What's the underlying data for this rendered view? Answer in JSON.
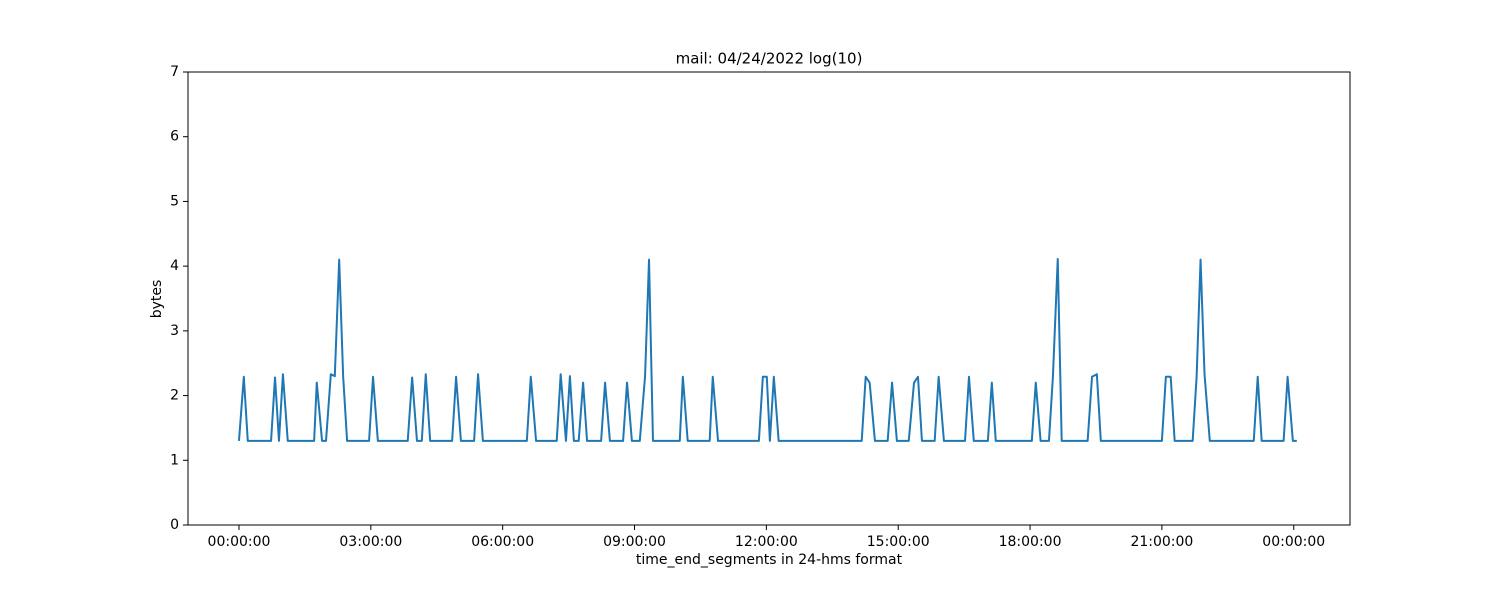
{
  "chart_data": {
    "type": "line",
    "title": "mail: 04/24/2022 log(10)",
    "xlabel": "time_end_segments in 24-hms format",
    "ylabel": "bytes",
    "x": [
      0,
      0.11,
      0.2,
      0.73,
      0.82,
      0.91,
      1.0,
      1.11,
      1.71,
      1.77,
      1.89,
      1.98,
      2.09,
      2.18,
      2.28,
      2.37,
      2.46,
      2.96,
      3.05,
      3.16,
      3.84,
      3.94,
      4.05,
      4.16,
      4.25,
      4.35,
      4.85,
      4.94,
      5.05,
      5.35,
      5.44,
      5.55,
      6.55,
      6.64,
      6.76,
      7.23,
      7.32,
      7.44,
      7.53,
      7.62,
      7.73,
      7.83,
      7.92,
      8.24,
      8.33,
      8.44,
      8.74,
      8.83,
      8.94,
      9.12,
      9.24,
      9.33,
      9.42,
      10.03,
      10.1,
      10.21,
      10.71,
      10.78,
      10.9,
      11.83,
      11.92,
      12.01,
      12.08,
      12.17,
      12.28,
      14.17,
      14.26,
      14.35,
      14.47,
      14.76,
      14.86,
      14.97,
      15.24,
      15.36,
      15.45,
      15.54,
      15.83,
      15.92,
      16.04,
      16.52,
      16.61,
      16.72,
      17.04,
      17.13,
      17.22,
      18.04,
      18.13,
      18.24,
      18.43,
      18.52,
      18.63,
      18.72,
      19.31,
      19.41,
      19.52,
      19.61,
      21.0,
      21.09,
      21.2,
      21.29,
      21.7,
      21.79,
      21.88,
      21.97,
      22.09,
      23.09,
      23.18,
      23.27,
      23.77,
      23.86,
      23.98,
      24.07
    ],
    "series": [
      {
        "name": "mail",
        "color": "#1f77b4",
        "values": [
          1.3,
          2.29,
          1.3,
          1.3,
          2.28,
          1.3,
          2.33,
          1.3,
          1.3,
          2.2,
          1.3,
          1.3,
          2.33,
          2.3,
          4.1,
          2.3,
          1.3,
          1.3,
          2.29,
          1.3,
          1.3,
          2.28,
          1.3,
          1.3,
          2.33,
          1.3,
          1.3,
          2.29,
          1.3,
          1.3,
          2.33,
          1.3,
          1.3,
          2.29,
          1.3,
          1.3,
          2.33,
          1.3,
          2.3,
          1.3,
          1.3,
          2.2,
          1.3,
          1.3,
          2.2,
          1.3,
          1.3,
          2.2,
          1.3,
          1.3,
          2.3,
          4.1,
          1.3,
          1.3,
          2.29,
          1.3,
          1.3,
          2.29,
          1.3,
          1.3,
          2.29,
          2.29,
          1.3,
          2.29,
          1.3,
          1.3,
          2.29,
          2.2,
          1.3,
          1.3,
          2.2,
          1.3,
          1.3,
          2.2,
          2.29,
          1.3,
          1.3,
          2.29,
          1.3,
          1.3,
          2.29,
          1.3,
          1.3,
          2.2,
          1.3,
          1.3,
          2.2,
          1.3,
          1.3,
          2.29,
          4.11,
          1.3,
          1.3,
          2.29,
          2.33,
          1.3,
          1.3,
          2.29,
          2.29,
          1.3,
          1.3,
          2.29,
          4.1,
          2.33,
          1.3,
          1.3,
          2.29,
          1.3,
          1.3,
          2.29,
          1.3,
          1.3
        ]
      }
    ],
    "xlim": [
      -1.16,
      25.28
    ],
    "xticks": [
      {
        "value": 0,
        "label": "00:00:00"
      },
      {
        "value": 3,
        "label": "03:00:00"
      },
      {
        "value": 6,
        "label": "06:00:00"
      },
      {
        "value": 9,
        "label": "09:00:00"
      },
      {
        "value": 12,
        "label": "12:00:00"
      },
      {
        "value": 15,
        "label": "15:00:00"
      },
      {
        "value": 18,
        "label": "18:00:00"
      },
      {
        "value": 21,
        "label": "21:00:00"
      },
      {
        "value": 24,
        "label": "00:00:00"
      }
    ],
    "ylim": [
      0,
      7
    ],
    "yticks": [
      0,
      1,
      2,
      3,
      4,
      5,
      6,
      7
    ],
    "grid": false
  }
}
